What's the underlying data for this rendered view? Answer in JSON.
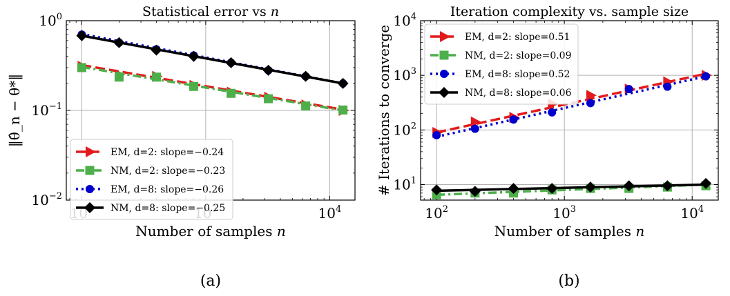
{
  "panels": [
    {
      "caption": "(a)",
      "chart_data": {
        "type": "line",
        "title": "Statistical error vs n",
        "xlabel": "Number of samples n",
        "ylabel": "‖θ̂_n − θ*‖",
        "xscale": "log",
        "yscale": "log",
        "xlim": [
          75,
          16000
        ],
        "ylim": [
          0.01,
          1
        ],
        "x_ticks": [
          {
            "value": 100,
            "base": "10",
            "exp": "2"
          },
          {
            "value": 1000,
            "base": "10",
            "exp": "3"
          },
          {
            "value": 10000,
            "base": "10",
            "exp": "4"
          }
        ],
        "y_ticks": [
          {
            "value": 0.01,
            "base": "10",
            "exp": "−2"
          },
          {
            "value": 0.1,
            "base": "10",
            "exp": "−1"
          },
          {
            "value": 1,
            "base": "10",
            "exp": "0"
          }
        ],
        "grid": true,
        "legend_position": "lower-left",
        "x": [
          100,
          200,
          400,
          800,
          1600,
          3200,
          6400,
          12800
        ],
        "series": [
          {
            "name": "EM, d=2: slope=−0.24",
            "color": "#e31a1c",
            "marker": "triangle-right",
            "dash": "dashed",
            "values": [
              0.31,
              0.25,
              0.24,
              0.19,
              0.16,
              0.14,
              0.115,
              0.1
            ],
            "fit": [
              0.32,
              0.102
            ]
          },
          {
            "name": "NM, d=2: slope=−0.23",
            "color": "#4daf4a",
            "marker": "square",
            "dash": "dashdot",
            "values": [
              0.3,
              0.235,
              0.235,
              0.185,
              0.155,
              0.135,
              0.112,
              0.101
            ],
            "fit": [
              0.305,
              0.1
            ]
          },
          {
            "name": "EM, d=8: slope=−0.26",
            "color": "#0000cc",
            "marker": "circle",
            "dash": "dotted",
            "values": [
              0.7,
              0.57,
              0.48,
              0.41,
              0.34,
              0.28,
              0.24,
              0.2
            ],
            "fit": [
              0.71,
              0.2
            ]
          },
          {
            "name": "NM, d=8: slope=−0.25",
            "color": "#000000",
            "marker": "diamond",
            "dash": "solid",
            "values": [
              0.68,
              0.57,
              0.47,
              0.4,
              0.34,
              0.28,
              0.24,
              0.2
            ],
            "fit": [
              0.68,
              0.2
            ]
          }
        ]
      }
    },
    {
      "caption": "(b)",
      "chart_data": {
        "type": "line",
        "title": "Iteration complexity vs. sample size",
        "xlabel": "Number of samples n",
        "ylabel": "# Iterations to converge",
        "xscale": "log",
        "yscale": "log",
        "xlim": [
          75,
          16000
        ],
        "ylim": [
          5.2,
          10000
        ],
        "x_ticks": [
          {
            "value": 100,
            "base": "10",
            "exp": "2"
          },
          {
            "value": 1000,
            "base": "10",
            "exp": "3"
          },
          {
            "value": 10000,
            "base": "10",
            "exp": "4"
          }
        ],
        "y_ticks": [
          {
            "value": 10,
            "base": "10",
            "exp": "1"
          },
          {
            "value": 100,
            "base": "10",
            "exp": "2"
          },
          {
            "value": 1000,
            "base": "10",
            "exp": "3"
          },
          {
            "value": 10000,
            "base": "10",
            "exp": "4"
          }
        ],
        "grid": true,
        "legend_position": "upper-left",
        "x": [
          100,
          200,
          400,
          800,
          1600,
          3200,
          6400,
          12800
        ],
        "series": [
          {
            "name": "EM, d=2: slope=0.51",
            "color": "#e31a1c",
            "marker": "triangle-right",
            "dash": "dashed",
            "values": [
              90,
              140,
              170,
              300,
              430,
              560,
              760,
              1000
            ],
            "fit": [
              90,
              1070
            ]
          },
          {
            "name": "NM, d=2: slope=0.09",
            "color": "#4daf4a",
            "marker": "square",
            "dash": "dashdot",
            "values": [
              6.5,
              7.0,
              7.0,
              8.0,
              8.5,
              8.5,
              9.0,
              9.5
            ],
            "fit": [
              6.5,
              10
            ]
          },
          {
            "name": "EM, d=8: slope=0.52",
            "color": "#0000cc",
            "marker": "circle",
            "dash": "dotted",
            "values": [
              80,
              105,
              155,
              210,
              310,
              560,
              620,
              960
            ],
            "fit": [
              75,
              960
            ]
          },
          {
            "name": "NM, d=8: slope=0.06",
            "color": "#000000",
            "marker": "diamond",
            "dash": "solid",
            "values": [
              8.0,
              7.5,
              8.5,
              8.5,
              9.0,
              9.5,
              9.5,
              10.5
            ],
            "fit": [
              7.7,
              10
            ]
          }
        ]
      }
    }
  ]
}
